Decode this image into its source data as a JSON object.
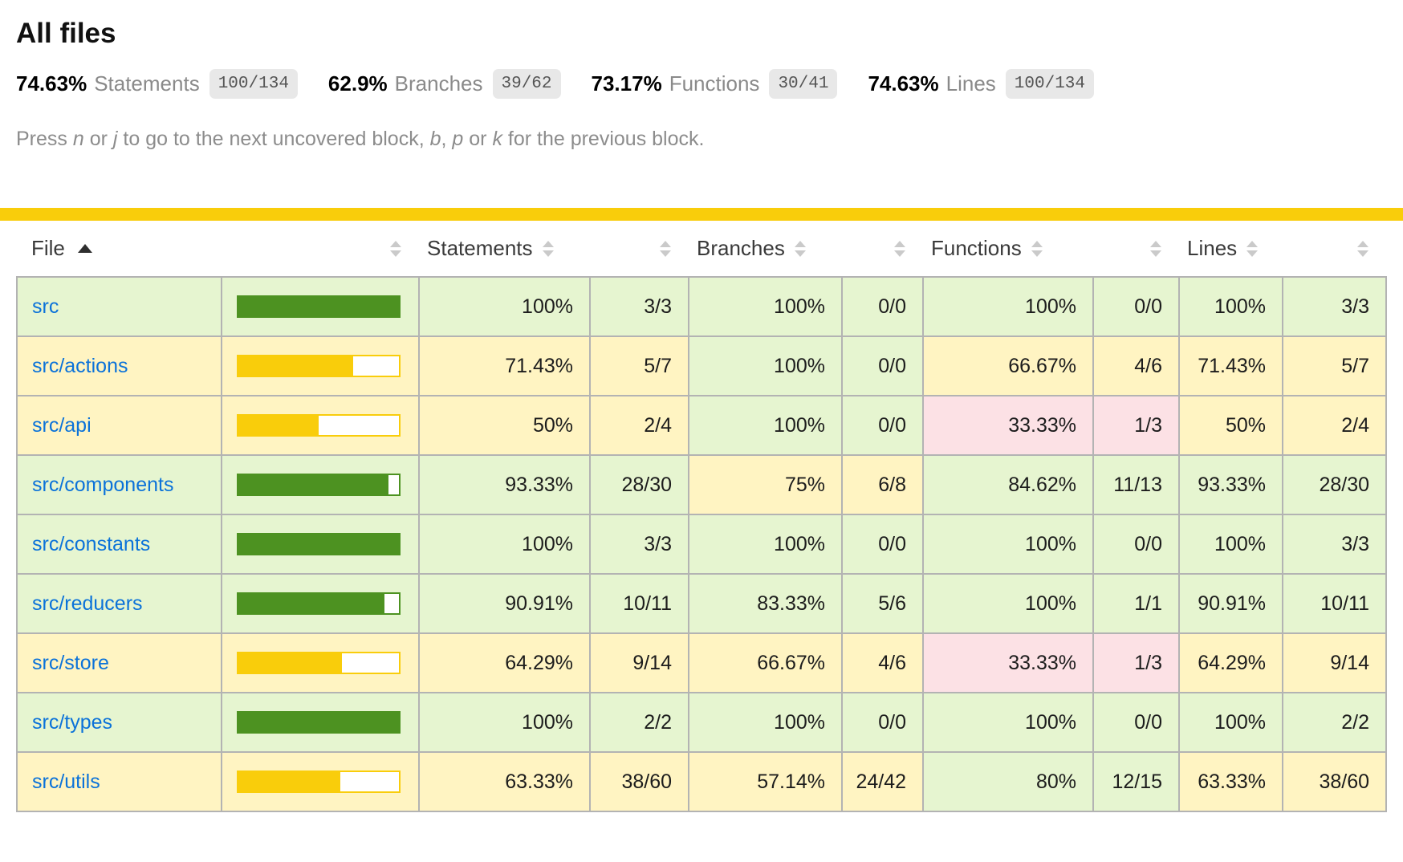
{
  "page": {
    "title": "All files"
  },
  "summary": {
    "items": [
      {
        "key": "statements",
        "pct": "74.63%",
        "label": "Statements",
        "fraction": "100/134"
      },
      {
        "key": "branches",
        "pct": "62.9%",
        "label": "Branches",
        "fraction": "39/62"
      },
      {
        "key": "functions",
        "pct": "73.17%",
        "label": "Functions",
        "fraction": "30/41"
      },
      {
        "key": "lines",
        "pct": "74.63%",
        "label": "Lines",
        "fraction": "100/134"
      }
    ]
  },
  "hint": {
    "parts": [
      {
        "text": "Press ",
        "em": false
      },
      {
        "text": "n",
        "em": true
      },
      {
        "text": " or ",
        "em": false
      },
      {
        "text": "j",
        "em": true
      },
      {
        "text": " to go to the next uncovered block, ",
        "em": false
      },
      {
        "text": "b",
        "em": true
      },
      {
        "text": ", ",
        "em": false
      },
      {
        "text": "p",
        "em": true
      },
      {
        "text": " or ",
        "em": false
      },
      {
        "text": "k",
        "em": true
      },
      {
        "text": " for the previous block.",
        "em": false
      }
    ]
  },
  "status_line": {
    "level": "medium"
  },
  "colors": {
    "high_fill": "#4d9221",
    "medium_fill": "#f9cd0b",
    "low_fill": "#c21f39",
    "high_bg": "#e6f5d0",
    "medium_bg": "#fff4c2",
    "low_bg": "#fce1e5",
    "link": "#0b72d9"
  },
  "table": {
    "columns": [
      {
        "key": "file",
        "label": "File",
        "type": "file",
        "sort": "asc"
      },
      {
        "key": "bar",
        "label": "",
        "type": "pic",
        "sort": "both"
      },
      {
        "key": "statements",
        "label": "Statements",
        "type": "pct",
        "sort": "both"
      },
      {
        "key": "statements-abs",
        "label": "",
        "type": "abs",
        "sort": "both"
      },
      {
        "key": "branches",
        "label": "Branches",
        "type": "pct",
        "sort": "both"
      },
      {
        "key": "branches-abs",
        "label": "",
        "type": "abs",
        "sort": "both"
      },
      {
        "key": "functions",
        "label": "Functions",
        "type": "pct",
        "sort": "both"
      },
      {
        "key": "functions-abs",
        "label": "",
        "type": "abs",
        "sort": "both"
      },
      {
        "key": "lines",
        "label": "Lines",
        "type": "pct",
        "sort": "both"
      },
      {
        "key": "lines-abs",
        "label": "",
        "type": "abs",
        "sort": "both"
      }
    ],
    "rows": [
      {
        "file": "src",
        "level": "high",
        "bar_pct": 100,
        "statements": {
          "pct": "100%",
          "frac": "3/3",
          "level": "high"
        },
        "branches": {
          "pct": "100%",
          "frac": "0/0",
          "level": "high"
        },
        "functions": {
          "pct": "100%",
          "frac": "0/0",
          "level": "high"
        },
        "lines": {
          "pct": "100%",
          "frac": "3/3",
          "level": "high"
        }
      },
      {
        "file": "src/actions",
        "level": "medium",
        "bar_pct": 71.43,
        "statements": {
          "pct": "71.43%",
          "frac": "5/7",
          "level": "medium"
        },
        "branches": {
          "pct": "100%",
          "frac": "0/0",
          "level": "high"
        },
        "functions": {
          "pct": "66.67%",
          "frac": "4/6",
          "level": "medium"
        },
        "lines": {
          "pct": "71.43%",
          "frac": "5/7",
          "level": "medium"
        }
      },
      {
        "file": "src/api",
        "level": "medium",
        "bar_pct": 50,
        "statements": {
          "pct": "50%",
          "frac": "2/4",
          "level": "medium"
        },
        "branches": {
          "pct": "100%",
          "frac": "0/0",
          "level": "high"
        },
        "functions": {
          "pct": "33.33%",
          "frac": "1/3",
          "level": "low"
        },
        "lines": {
          "pct": "50%",
          "frac": "2/4",
          "level": "medium"
        }
      },
      {
        "file": "src/components",
        "level": "high",
        "bar_pct": 93.33,
        "statements": {
          "pct": "93.33%",
          "frac": "28/30",
          "level": "high"
        },
        "branches": {
          "pct": "75%",
          "frac": "6/8",
          "level": "medium"
        },
        "functions": {
          "pct": "84.62%",
          "frac": "11/13",
          "level": "high"
        },
        "lines": {
          "pct": "93.33%",
          "frac": "28/30",
          "level": "high"
        }
      },
      {
        "file": "src/constants",
        "level": "high",
        "bar_pct": 100,
        "statements": {
          "pct": "100%",
          "frac": "3/3",
          "level": "high"
        },
        "branches": {
          "pct": "100%",
          "frac": "0/0",
          "level": "high"
        },
        "functions": {
          "pct": "100%",
          "frac": "0/0",
          "level": "high"
        },
        "lines": {
          "pct": "100%",
          "frac": "3/3",
          "level": "high"
        }
      },
      {
        "file": "src/reducers",
        "level": "high",
        "bar_pct": 90.91,
        "statements": {
          "pct": "90.91%",
          "frac": "10/11",
          "level": "high"
        },
        "branches": {
          "pct": "83.33%",
          "frac": "5/6",
          "level": "high"
        },
        "functions": {
          "pct": "100%",
          "frac": "1/1",
          "level": "high"
        },
        "lines": {
          "pct": "90.91%",
          "frac": "10/11",
          "level": "high"
        }
      },
      {
        "file": "src/store",
        "level": "medium",
        "bar_pct": 64.29,
        "statements": {
          "pct": "64.29%",
          "frac": "9/14",
          "level": "medium"
        },
        "branches": {
          "pct": "66.67%",
          "frac": "4/6",
          "level": "medium"
        },
        "functions": {
          "pct": "33.33%",
          "frac": "1/3",
          "level": "low"
        },
        "lines": {
          "pct": "64.29%",
          "frac": "9/14",
          "level": "medium"
        }
      },
      {
        "file": "src/types",
        "level": "high",
        "bar_pct": 100,
        "statements": {
          "pct": "100%",
          "frac": "2/2",
          "level": "high"
        },
        "branches": {
          "pct": "100%",
          "frac": "0/0",
          "level": "high"
        },
        "functions": {
          "pct": "100%",
          "frac": "0/0",
          "level": "high"
        },
        "lines": {
          "pct": "100%",
          "frac": "2/2",
          "level": "high"
        }
      },
      {
        "file": "src/utils",
        "level": "medium",
        "bar_pct": 63.33,
        "statements": {
          "pct": "63.33%",
          "frac": "38/60",
          "level": "medium"
        },
        "branches": {
          "pct": "57.14%",
          "frac": "24/42",
          "level": "medium"
        },
        "functions": {
          "pct": "80%",
          "frac": "12/15",
          "level": "high"
        },
        "lines": {
          "pct": "63.33%",
          "frac": "38/60",
          "level": "medium"
        }
      }
    ]
  }
}
